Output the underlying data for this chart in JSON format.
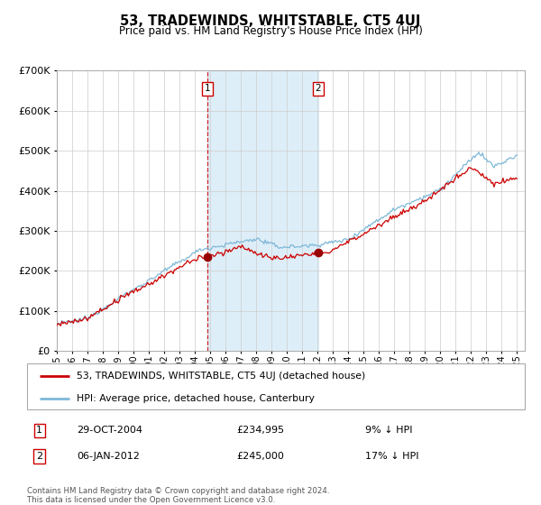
{
  "title": "53, TRADEWINDS, WHITSTABLE, CT5 4UJ",
  "subtitle": "Price paid vs. HM Land Registry's House Price Index (HPI)",
  "legend_line1": "53, TRADEWINDS, WHITSTABLE, CT5 4UJ (detached house)",
  "legend_line2": "HPI: Average price, detached house, Canterbury",
  "sale1_label": "1",
  "sale1_date": "29-OCT-2004",
  "sale1_price": 234995,
  "sale1_text": "9% ↓ HPI",
  "sale2_label": "2",
  "sale2_date": "06-JAN-2012",
  "sale2_price": 245000,
  "sale2_text": "17% ↓ HPI",
  "footnote": "Contains HM Land Registry data © Crown copyright and database right 2024.\nThis data is licensed under the Open Government Licence v3.0.",
  "hpi_color": "#7fb8d8",
  "price_color": "#cc0000",
  "sale_marker_color": "#990000",
  "shading_color": "#ddeef8",
  "dashed_line_color": "#cc0000",
  "background_color": "#ffffff",
  "grid_color": "#cccccc",
  "ylim": [
    0,
    700000
  ],
  "start_year": 1995,
  "end_year": 2025,
  "sale1_year": 2004.83,
  "sale2_year": 2012.03
}
